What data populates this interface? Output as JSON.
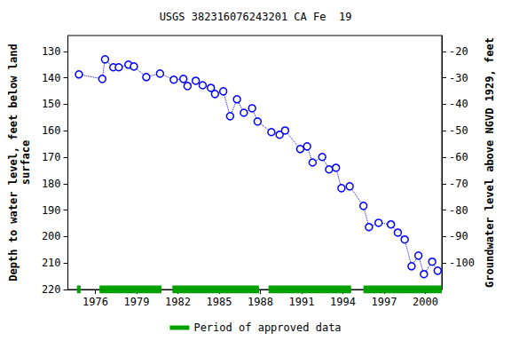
{
  "chart_data": {
    "type": "line",
    "title": "USGS 382316076243201 CA Fe  19",
    "y_label": "Depth to water level, feet below land\nsurface",
    "y2_label": "Groundwater level above NGVD 1929, feet",
    "x": [
      1974.8,
      1976.5,
      1976.7,
      1977.3,
      1977.7,
      1978.4,
      1978.8,
      1979.7,
      1980.7,
      1981.7,
      1982.4,
      1982.7,
      1983.3,
      1983.8,
      1984.4,
      1984.7,
      1985.3,
      1985.8,
      1986.3,
      1986.8,
      1987.4,
      1987.8,
      1988.8,
      1989.4,
      1989.8,
      1990.9,
      1991.4,
      1991.8,
      1992.5,
      1993.0,
      1993.5,
      1993.9,
      1994.5,
      1995.5,
      1995.9,
      1996.6,
      1997.5,
      1998.0,
      1998.5,
      1999.0,
      1999.5,
      1999.9,
      2000.5,
      2000.9
    ],
    "values": [
      138.7,
      140.4,
      133.0,
      136.0,
      136.0,
      135.0,
      135.7,
      139.7,
      138.4,
      140.7,
      140.4,
      143.1,
      141.1,
      142.8,
      143.8,
      146.1,
      145.1,
      154.5,
      148.1,
      153.2,
      151.5,
      156.5,
      160.5,
      161.5,
      159.9,
      166.9,
      165.9,
      172.0,
      169.9,
      174.6,
      174.0,
      181.7,
      181.0,
      188.4,
      196.4,
      194.8,
      195.4,
      198.5,
      201.1,
      211.2,
      207.2,
      214.2,
      209.5,
      212.9
    ],
    "color": "#0000ff",
    "marker": "circle",
    "line_style": "dotted",
    "xlim": [
      1974,
      2001.2
    ],
    "xticks": [
      1976,
      1979,
      1982,
      1985,
      1988,
      1991,
      1994,
      1997,
      2000
    ],
    "ylim": [
      220,
      124
    ],
    "yticks": [
      130,
      140,
      150,
      160,
      170,
      180,
      190,
      200,
      210,
      220
    ],
    "y2lim": [
      -110,
      -14
    ],
    "y2ticks": [
      -20,
      -30,
      -40,
      -50,
      -60,
      -70,
      -80,
      -90,
      -100
    ],
    "grid": false,
    "approved_periods": {
      "name": "Period of approved data",
      "color": "#00a000",
      "ranges": [
        [
          1974.66,
          1974.92
        ],
        [
          1976.3,
          1980.8
        ],
        [
          1981.6,
          1987.9
        ],
        [
          1988.6,
          1994.6
        ],
        [
          1995.5,
          2001.2
        ]
      ]
    }
  }
}
